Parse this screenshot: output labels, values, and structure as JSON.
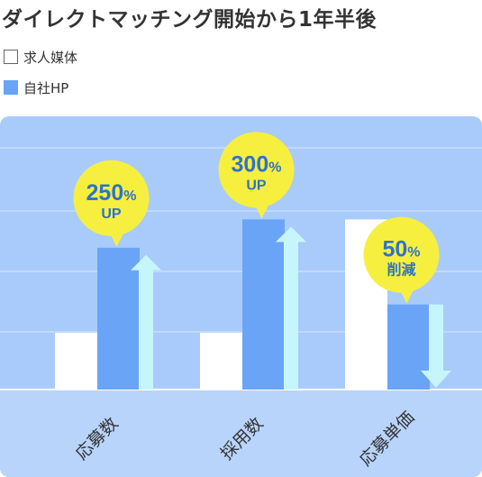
{
  "title": "ダイレクトマッチング開始から1年半後",
  "legend": [
    {
      "label": "求人媒体",
      "color": "#ffffff"
    },
    {
      "label": "自社HP",
      "color": "#6aa4f7"
    }
  ],
  "colors": {
    "panel": "#a9cbfb",
    "footer": "#b8d4fb",
    "gridline": "#d7e7fd",
    "job_media": "#ffffff",
    "company_hp": "#6aa4f7",
    "arrow": "#c6f6fc",
    "bubble": "#f7ef3f",
    "bubble_text": "#2e74c9"
  },
  "chart_data": {
    "type": "bar",
    "categories": [
      "応募数",
      "採用数",
      "応募単価"
    ],
    "series": [
      {
        "name": "求人媒体",
        "values": [
          100,
          100,
          300
        ]
      },
      {
        "name": "自社HP",
        "values": [
          250,
          300,
          150
        ]
      }
    ],
    "ylim": [
      0,
      450
    ],
    "grid": true,
    "legend_position": "top-left",
    "annotations": [
      {
        "category": "応募数",
        "value": "250%",
        "unit": "UP",
        "direction": "up"
      },
      {
        "category": "採用数",
        "value": "300%",
        "unit": "UP",
        "direction": "up"
      },
      {
        "category": "応募単価",
        "value": "50%",
        "unit": "削減",
        "direction": "down"
      }
    ]
  }
}
